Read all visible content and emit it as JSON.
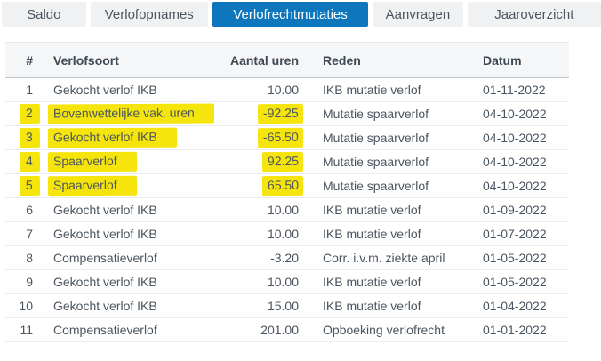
{
  "colors": {
    "accent": "#0e76bc",
    "highlight": "#f5e50d",
    "inactive_tab_bg": "#f0f1f2"
  },
  "tabs": [
    {
      "label": "Saldo",
      "active": false
    },
    {
      "label": "Verlofopnames",
      "active": false
    },
    {
      "label": "Verlofrechtmutaties",
      "active": true
    },
    {
      "label": "Aanvragen",
      "active": false
    },
    {
      "label": "Jaaroverzicht",
      "active": false
    }
  ],
  "table": {
    "columns": [
      "#",
      "Verlofsoort",
      "Aantal uren",
      "Reden",
      "Datum"
    ],
    "rows": [
      {
        "num": "1",
        "verlofsoort": "Gekocht verlof IKB",
        "aantal_uren": "10.00",
        "reden": "IKB mutatie verlof",
        "datum": "01-11-2022",
        "highlighted": false
      },
      {
        "num": "2",
        "verlofsoort": "Bovenwettelijke vak. uren",
        "aantal_uren": "-92.25",
        "reden": "Mutatie spaarverlof",
        "datum": "04-10-2022",
        "highlighted": true
      },
      {
        "num": "3",
        "verlofsoort": "Gekocht verlof IKB",
        "aantal_uren": "-65.50",
        "reden": "Mutatie spaarverlof",
        "datum": "04-10-2022",
        "highlighted": true
      },
      {
        "num": "4",
        "verlofsoort": "Spaarverlof",
        "aantal_uren": "92.25",
        "reden": "Mutatie spaarverlof",
        "datum": "04-10-2022",
        "highlighted": true
      },
      {
        "num": "5",
        "verlofsoort": "Spaarverlof",
        "aantal_uren": "65.50",
        "reden": "Mutatie spaarverlof",
        "datum": "04-10-2022",
        "highlighted": true
      },
      {
        "num": "6",
        "verlofsoort": "Gekocht verlof IKB",
        "aantal_uren": "10.00",
        "reden": "IKB mutatie verlof",
        "datum": "01-09-2022",
        "highlighted": false
      },
      {
        "num": "7",
        "verlofsoort": "Gekocht verlof IKB",
        "aantal_uren": "10.00",
        "reden": "IKB mutatie verlof",
        "datum": "01-07-2022",
        "highlighted": false
      },
      {
        "num": "8",
        "verlofsoort": "Compensatieverlof",
        "aantal_uren": "-3.20",
        "reden": "Corr. i.v.m. ziekte april",
        "datum": "01-05-2022",
        "highlighted": false
      },
      {
        "num": "9",
        "verlofsoort": "Gekocht verlof IKB",
        "aantal_uren": "10.00",
        "reden": "IKB mutatie verlof",
        "datum": "01-05-2022",
        "highlighted": false
      },
      {
        "num": "10",
        "verlofsoort": "Gekocht verlof IKB",
        "aantal_uren": "15.00",
        "reden": "IKB mutatie verlof",
        "datum": "01-04-2022",
        "highlighted": false
      },
      {
        "num": "11",
        "verlofsoort": "Compensatieverlof",
        "aantal_uren": "201.00",
        "reden": "Opboeking verlofrecht",
        "datum": "01-01-2022",
        "highlighted": false
      }
    ]
  }
}
